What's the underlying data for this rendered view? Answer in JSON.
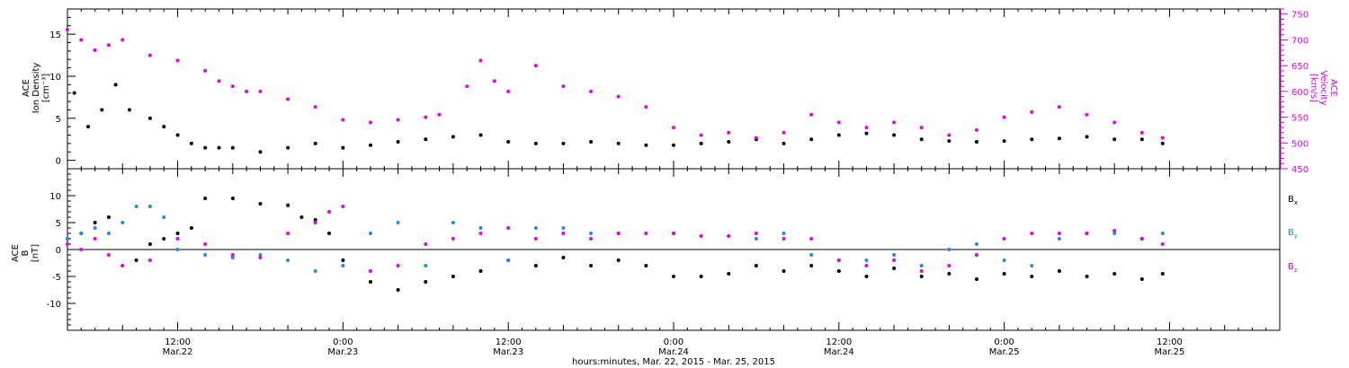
{
  "colors": {
    "black": "#000000",
    "magenta": "#e800e8",
    "blue": "#1a8fe3"
  },
  "time_axis": {
    "label": "hours:minutes, Mar. 22, 2015 - Mar. 25, 2015",
    "range_hours": [
      4,
      92
    ],
    "ticks": [
      {
        "t": 12,
        "time": "12:00",
        "date": "Mar.22"
      },
      {
        "t": 24,
        "time": "0:00",
        "date": "Mar.23"
      },
      {
        "t": 36,
        "time": "12:00",
        "date": "Mar.23"
      },
      {
        "t": 48,
        "time": "0:00",
        "date": "Mar.24"
      },
      {
        "t": 60,
        "time": "12:00",
        "date": "Mar.24"
      },
      {
        "t": 72,
        "time": "0:00",
        "date": "Mar.25"
      },
      {
        "t": 84,
        "time": "12:00",
        "date": "Mar.25"
      }
    ]
  },
  "chart_data": [
    {
      "type": "scatter",
      "panel": "plasma",
      "ylabel": [
        "ACE",
        "Ion Density",
        "[cm⁻³]"
      ],
      "ylim": [
        -1,
        18
      ],
      "yticks": [
        0,
        5,
        10,
        15
      ],
      "y2label": [
        "ACE",
        "Velocity",
        "[km/s]"
      ],
      "y2lim": [
        450,
        760
      ],
      "y2ticks": [
        450,
        500,
        550,
        600,
        650,
        700,
        750
      ],
      "series": [
        {
          "key": "density",
          "color": "#000000",
          "axis": "left",
          "x": [
            4.5,
            5.5,
            6.5,
            7.5,
            8.5,
            10,
            11,
            12,
            13,
            14,
            15,
            16,
            18,
            20,
            22,
            24,
            26,
            28,
            30,
            32,
            34,
            36,
            38,
            40,
            42,
            44,
            46,
            48,
            50,
            52,
            54,
            56,
            58,
            60,
            62,
            64,
            66,
            68,
            70,
            72,
            74,
            76,
            78,
            80,
            82,
            83.5
          ],
          "y": [
            8,
            4,
            6,
            9,
            6,
            5,
            4,
            3,
            2,
            1.5,
            1.5,
            1.5,
            1,
            1.5,
            2,
            1.5,
            1.8,
            2.2,
            2.5,
            2.8,
            3,
            2.2,
            2,
            2,
            2.2,
            2,
            1.8,
            1.8,
            2,
            2.2,
            2.5,
            2,
            2.5,
            3,
            3.2,
            3,
            2.5,
            2.3,
            2.2,
            2.3,
            2.5,
            2.6,
            2.8,
            2.5,
            2.5,
            2
          ]
        },
        {
          "key": "velocity",
          "color": "#e800e8",
          "axis": "right",
          "x": [
            4,
            5,
            6,
            7,
            8,
            10,
            12,
            14,
            15,
            16,
            17,
            18,
            20,
            22,
            24,
            26,
            28,
            30,
            31,
            33,
            34,
            35,
            36,
            38,
            40,
            42,
            44,
            46,
            48,
            50,
            52,
            54,
            56,
            58,
            60,
            62,
            64,
            66,
            68,
            70,
            72,
            74,
            76,
            78,
            80,
            82,
            83.5
          ],
          "y": [
            720,
            700,
            680,
            690,
            700,
            670,
            660,
            640,
            620,
            610,
            600,
            600,
            585,
            570,
            545,
            540,
            545,
            550,
            555,
            610,
            660,
            620,
            600,
            650,
            610,
            600,
            590,
            570,
            530,
            515,
            520,
            510,
            520,
            555,
            540,
            530,
            540,
            530,
            515,
            525,
            550,
            560,
            570,
            555,
            540,
            520,
            510
          ]
        }
      ]
    },
    {
      "type": "scatter",
      "panel": "magnetic-field",
      "ylabel": [
        "ACE",
        "B",
        "[nT]"
      ],
      "ylim": [
        -15,
        15
      ],
      "yticks": [
        -10,
        -5,
        0,
        5,
        10
      ],
      "series": [
        {
          "key": "Bx",
          "name": "Bx",
          "color": "#000000",
          "x": [
            4,
            5,
            6,
            7,
            8,
            9,
            10,
            11,
            12,
            13,
            14,
            16,
            18,
            20,
            21,
            22,
            23,
            24,
            26,
            28,
            30,
            32,
            34,
            36,
            38,
            40,
            42,
            44,
            46,
            48,
            50,
            52,
            54,
            56,
            58,
            60,
            62,
            64,
            66,
            68,
            70,
            72,
            74,
            76,
            78,
            80,
            82,
            83.5
          ],
          "y": [
            2,
            3,
            5,
            6,
            -3,
            -2,
            1,
            2,
            3,
            4,
            9.5,
            9.5,
            8.5,
            8.2,
            6,
            5.5,
            3,
            -2,
            -6,
            -7.5,
            -6,
            -5,
            -4,
            -2,
            -3,
            -1.5,
            -3,
            -2,
            -3,
            -5,
            -5,
            -4.5,
            -3,
            -4,
            -3,
            -4,
            -5,
            -3.5,
            -5,
            -4.5,
            -5.5,
            -4.5,
            -5,
            -4,
            -5,
            -4.5,
            -5.5,
            -4.5
          ]
        },
        {
          "key": "By",
          "name": "By",
          "color": "#1a8fe3",
          "x": [
            4,
            5,
            6,
            7,
            8,
            9,
            10,
            11,
            12,
            14,
            16,
            18,
            20,
            22,
            24,
            26,
            28,
            30,
            32,
            34,
            36,
            38,
            40,
            42,
            44,
            46,
            48,
            50,
            52,
            54,
            56,
            58,
            60,
            62,
            64,
            66,
            68,
            70,
            72,
            74,
            76,
            78,
            80,
            82,
            83.5
          ],
          "y": [
            2,
            3,
            4,
            3,
            5,
            8,
            8,
            6,
            0,
            -1,
            -1.5,
            -1,
            -2,
            -4,
            -3,
            3,
            5,
            -3,
            5,
            4,
            -2,
            4,
            4,
            3,
            3,
            3,
            3,
            2.5,
            2.5,
            2,
            3,
            -1,
            -2,
            -2,
            -1,
            -3,
            0,
            1,
            -2,
            -3,
            2,
            3,
            3,
            2,
            3
          ]
        },
        {
          "key": "Bz",
          "name": "Bz",
          "color": "#e800e8",
          "x": [
            4,
            5,
            6,
            7,
            8,
            10,
            12,
            14,
            16,
            18,
            20,
            22,
            23,
            24,
            26,
            28,
            30,
            32,
            34,
            36,
            38,
            40,
            42,
            44,
            46,
            48,
            50,
            52,
            54,
            56,
            58,
            60,
            62,
            64,
            66,
            68,
            70,
            72,
            74,
            76,
            78,
            80,
            82,
            83.5
          ],
          "y": [
            1,
            0,
            2,
            -1,
            -3,
            -2,
            2,
            1,
            -1,
            -1.5,
            3,
            5,
            7,
            8,
            -4,
            -3,
            1,
            2,
            3,
            4,
            2,
            3,
            2,
            3,
            3,
            3,
            2.5,
            2.5,
            3,
            2,
            2,
            -2,
            -3,
            -2,
            -4,
            -3,
            -1,
            2,
            3,
            3,
            3,
            3.5,
            2,
            1
          ]
        }
      ]
    }
  ]
}
